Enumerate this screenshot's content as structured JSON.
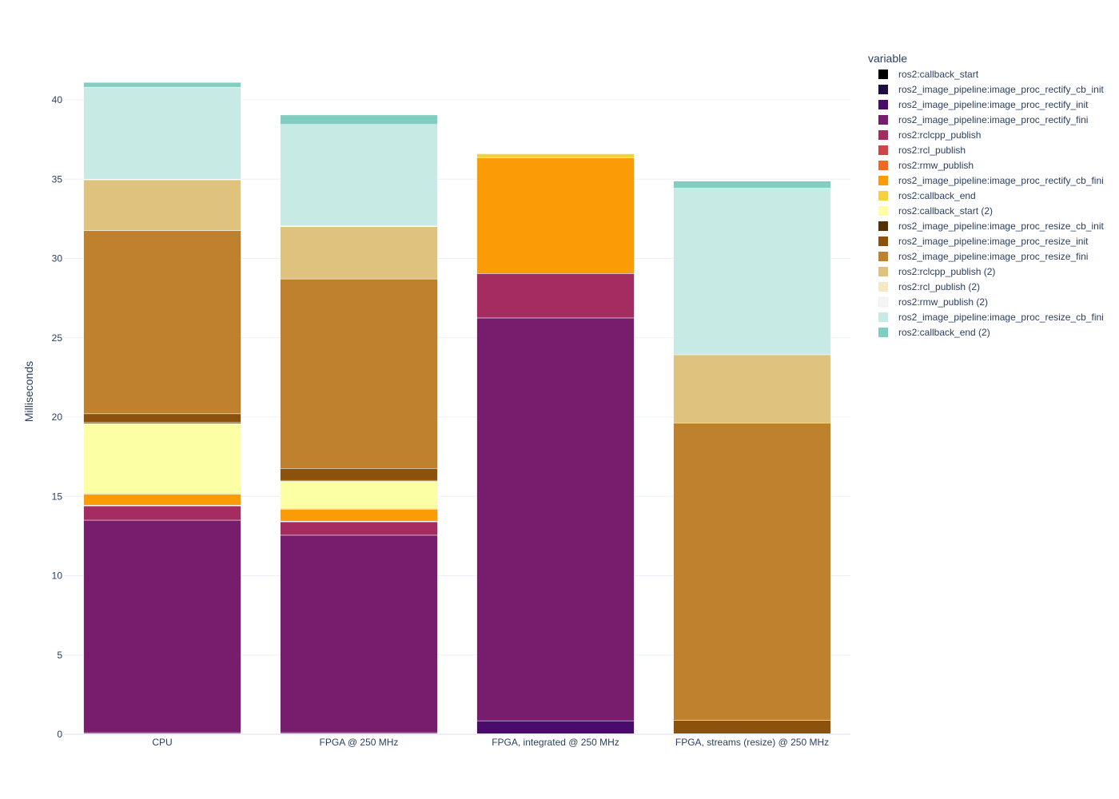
{
  "chart_data": {
    "type": "bar",
    "stacked": true,
    "ylabel": "Milliseconds",
    "ylim": [
      0,
      42
    ],
    "yticks": [
      0,
      5,
      10,
      15,
      20,
      25,
      30,
      35,
      40
    ],
    "grid": true,
    "legend": {
      "title": "variable",
      "placement": "right"
    },
    "categories": [
      "CPU",
      "FPGA @ 250 MHz",
      "FPGA, integrated @ 250 MHz",
      "FPGA, streams (resize) @ 250 MHz"
    ],
    "series": [
      {
        "name": "ros2:callback_start",
        "color": "#000000",
        "values": [
          0.02,
          0.02,
          0.0,
          0.0
        ]
      },
      {
        "name": "ros2_image_pipeline:image_proc_rectify_cb_init",
        "color": "#1b0c41",
        "values": [
          0.02,
          0.02,
          0.0,
          0.0
        ]
      },
      {
        "name": "ros2_image_pipeline:image_proc_rectify_init",
        "color": "#4a0c6b",
        "values": [
          0.06,
          0.06,
          0.85,
          0.0
        ]
      },
      {
        "name": "ros2_image_pipeline:image_proc_rectify_fini",
        "color": "#781c6d",
        "values": [
          13.4,
          12.45,
          25.4,
          0.0
        ]
      },
      {
        "name": "ros2:rclcpp_publish",
        "color": "#a52c60",
        "values": [
          0.9,
          0.85,
          2.8,
          0.0
        ]
      },
      {
        "name": "ros2:rcl_publish",
        "color": "#cf4446",
        "values": [
          0.02,
          0.02,
          0.0,
          0.0
        ]
      },
      {
        "name": "ros2:rmw_publish",
        "color": "#ed6925",
        "values": [
          0.02,
          0.02,
          0.0,
          0.0
        ]
      },
      {
        "name": "ros2_image_pipeline:image_proc_rectify_cb_fini",
        "color": "#fb9b06",
        "values": [
          0.7,
          0.75,
          7.3,
          0.0
        ]
      },
      {
        "name": "ros2:callback_end",
        "color": "#f7d13d",
        "values": [
          0.06,
          0.06,
          0.25,
          0.0
        ]
      },
      {
        "name": "ros2:callback_start (2)",
        "color": "#fcffa4",
        "values": [
          4.4,
          1.7,
          0.0,
          0.0
        ]
      },
      {
        "name": "ros2_image_pipeline:image_proc_resize_cb_init",
        "color": "#543005",
        "values": [
          0.06,
          0.06,
          0.0,
          0.03
        ]
      },
      {
        "name": "ros2_image_pipeline:image_proc_resize_init",
        "color": "#8c510a",
        "values": [
          0.55,
          0.75,
          0.0,
          0.85
        ]
      },
      {
        "name": "ros2_image_pipeline:image_proc_resize_fini",
        "color": "#bf812d",
        "values": [
          11.55,
          11.95,
          0.0,
          18.75
        ]
      },
      {
        "name": "ros2:rclcpp_publish (2)",
        "color": "#dfc27d",
        "values": [
          3.2,
          3.3,
          0.0,
          4.3
        ]
      },
      {
        "name": "ros2:rcl_publish (2)",
        "color": "#f6e8c3",
        "values": [
          0.02,
          0.02,
          0.0,
          0.0
        ]
      },
      {
        "name": "ros2:rmw_publish (2)",
        "color": "#f5f5f5",
        "values": [
          0.02,
          0.02,
          0.0,
          0.0
        ]
      },
      {
        "name": "ros2_image_pipeline:image_proc_resize_cb_fini",
        "color": "#c7eae5",
        "values": [
          5.8,
          6.4,
          0.0,
          10.5
        ]
      },
      {
        "name": "ros2:callback_end (2)",
        "color": "#80cdc1",
        "values": [
          0.3,
          0.6,
          0.0,
          0.45
        ]
      }
    ]
  }
}
